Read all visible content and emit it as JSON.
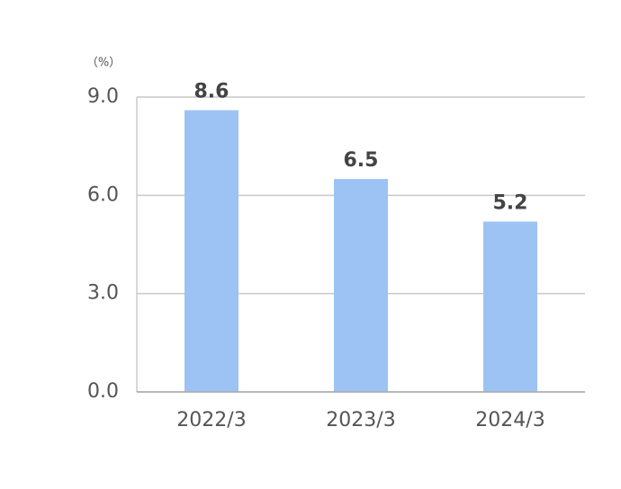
{
  "chart_data": {
    "type": "bar",
    "y_label": "（%）",
    "categories": [
      "2022/3",
      "2023/3",
      "2024/3"
    ],
    "values": [
      8.6,
      6.5,
      5.2
    ],
    "color": "#9dc3f5",
    "ylim": [
      0,
      9
    ],
    "yticks": [
      {
        "value": 0,
        "label": "0.0"
      },
      {
        "value": 3,
        "label": "3.0"
      },
      {
        "value": 6,
        "label": "6.0"
      },
      {
        "value": 9,
        "label": "9.0"
      }
    ],
    "grid": true
  }
}
